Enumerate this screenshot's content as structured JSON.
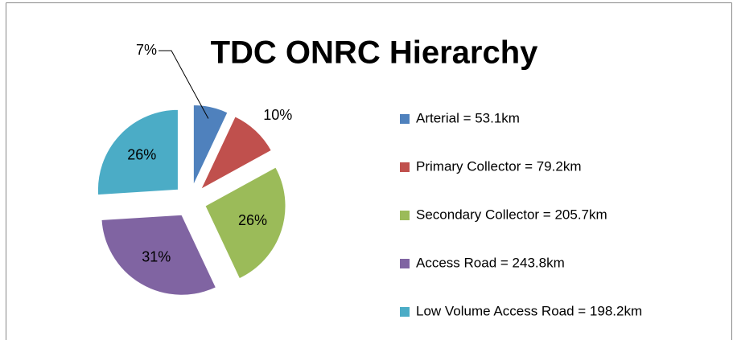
{
  "chart_data": {
    "type": "pie",
    "title": "TDC ONRC Hierarchy",
    "categories": [
      "Arterial = 53.1km",
      "Primary Collector = 79.2km",
      "Secondary Collector = 205.7km",
      "Access Road = 243.8km",
      "Low Volume Access Road = 198.2km"
    ],
    "values": [
      7,
      10,
      26,
      31,
      26
    ],
    "value_labels": [
      "7%",
      "10%",
      "26%",
      "31%",
      "26%"
    ],
    "colors": [
      "#4f81bd",
      "#c0504d",
      "#9bbb59",
      "#8064a2",
      "#4bacc6"
    ],
    "legend": "right"
  }
}
